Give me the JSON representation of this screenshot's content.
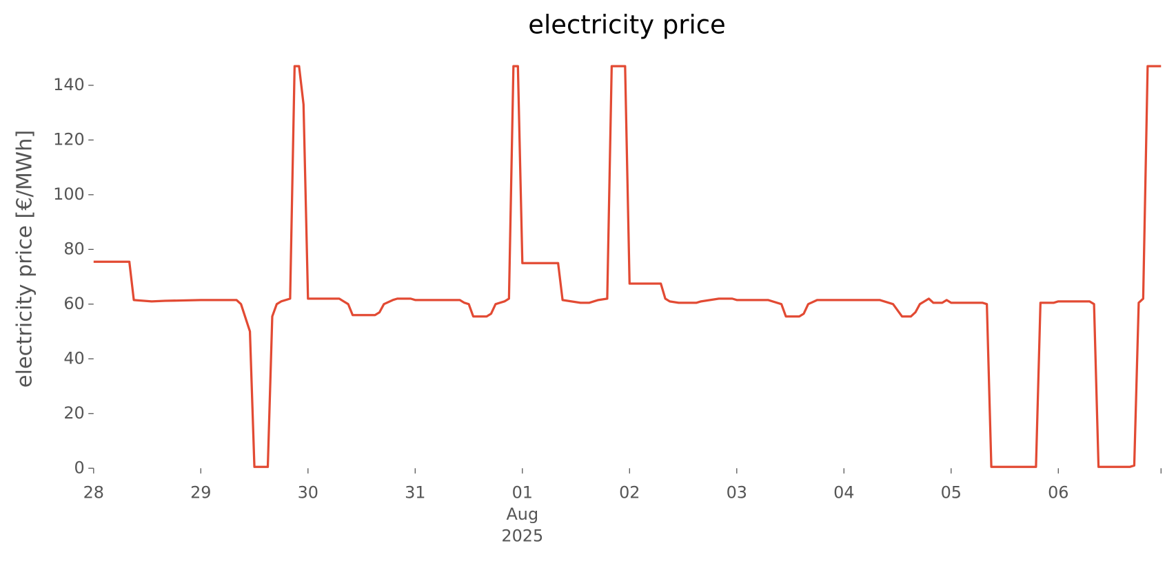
{
  "chart_data": {
    "type": "line",
    "title": "electricity price",
    "y_label": "electricity price [€/MWh]",
    "x": [
      "2025-07-28T00:00",
      "2025-07-28T08:00",
      "2025-07-28T09:00",
      "2025-07-28T13:00",
      "2025-07-28T16:00",
      "2025-07-29T00:00",
      "2025-07-29T08:00",
      "2025-07-29T09:00",
      "2025-07-29T11:00",
      "2025-07-29T12:00",
      "2025-07-29T15:00",
      "2025-07-29T16:00",
      "2025-07-29T17:00",
      "2025-07-29T18:00",
      "2025-07-29T20:00",
      "2025-07-29T21:00",
      "2025-07-29T22:00",
      "2025-07-29T23:00",
      "2025-07-30T00:00",
      "2025-07-30T07:00",
      "2025-07-30T08:00",
      "2025-07-30T09:00",
      "2025-07-30T10:00",
      "2025-07-30T15:00",
      "2025-07-30T16:00",
      "2025-07-30T17:00",
      "2025-07-30T19:00",
      "2025-07-30T20:00",
      "2025-07-30T23:00",
      "2025-07-31T00:00",
      "2025-07-31T10:00",
      "2025-07-31T11:00",
      "2025-07-31T12:00",
      "2025-07-31T13:00",
      "2025-07-31T16:00",
      "2025-07-31T17:00",
      "2025-07-31T18:00",
      "2025-07-31T20:00",
      "2025-07-31T21:00",
      "2025-07-31T22:00",
      "2025-07-31T23:00",
      "2025-08-01T00:00",
      "2025-08-01T08:00",
      "2025-08-01T09:00",
      "2025-08-01T11:00",
      "2025-08-01T13:00",
      "2025-08-01T15:00",
      "2025-08-01T17:00",
      "2025-08-01T19:00",
      "2025-08-01T20:00",
      "2025-08-01T23:00",
      "2025-08-02T00:00",
      "2025-08-02T07:00",
      "2025-08-02T08:00",
      "2025-08-02T09:00",
      "2025-08-02T11:00",
      "2025-08-02T15:00",
      "2025-08-02T16:00",
      "2025-08-02T18:00",
      "2025-08-02T20:00",
      "2025-08-02T23:00",
      "2025-08-03T00:00",
      "2025-08-03T07:00",
      "2025-08-03T09:00",
      "2025-08-03T10:00",
      "2025-08-03T11:00",
      "2025-08-03T14:00",
      "2025-08-03T15:00",
      "2025-08-03T16:00",
      "2025-08-03T18:00",
      "2025-08-04T00:00",
      "2025-08-04T08:00",
      "2025-08-04T09:00",
      "2025-08-04T11:00",
      "2025-08-04T13:00",
      "2025-08-04T15:00",
      "2025-08-04T16:00",
      "2025-08-04T17:00",
      "2025-08-04T18:00",
      "2025-08-04T19:00",
      "2025-08-04T20:00",
      "2025-08-04T22:00",
      "2025-08-04T23:00",
      "2025-08-05T00:00",
      "2025-08-05T07:00",
      "2025-08-05T08:00",
      "2025-08-05T09:00",
      "2025-08-05T19:00",
      "2025-08-05T20:00",
      "2025-08-05T23:00",
      "2025-08-06T00:00",
      "2025-08-06T07:00",
      "2025-08-06T08:00",
      "2025-08-06T09:00",
      "2025-08-06T16:00",
      "2025-08-06T17:00",
      "2025-08-06T18:00",
      "2025-08-06T19:00",
      "2025-08-06T20:00",
      "2025-08-06T23:00"
    ],
    "series": [
      {
        "name": "electricity price",
        "color": "#E24A33",
        "values": [
          75.5,
          75.5,
          61.5,
          61,
          61.2,
          61.5,
          61.5,
          60,
          50,
          0.5,
          0.5,
          55.5,
          60,
          61,
          62,
          147,
          147,
          133,
          62,
          62,
          61,
          60,
          56,
          56,
          57,
          60,
          61.5,
          62,
          62,
          61.5,
          61.5,
          60.5,
          60,
          55.5,
          55.5,
          56.5,
          60,
          61,
          62,
          147,
          147,
          75,
          75,
          61.5,
          61,
          60.5,
          60.5,
          61.5,
          62,
          147,
          147,
          67.5,
          67.5,
          62,
          61,
          60.5,
          60.5,
          61,
          61.5,
          62,
          62,
          61.5,
          61.5,
          60.5,
          60,
          55.5,
          55.5,
          56.5,
          60,
          61.5,
          61.5,
          61.5,
          61,
          60,
          55.5,
          55.5,
          57,
          60,
          61,
          62,
          60.5,
          60.5,
          61.5,
          60.5,
          60.5,
          60,
          0.5,
          0.5,
          60.5,
          60.5,
          61,
          61,
          60,
          0.5,
          0.5,
          1,
          60.5,
          62,
          147,
          147
        ]
      }
    ],
    "xlim": [
      "2025-07-28T00:00",
      "2025-08-06T23:00"
    ],
    "xticks": [
      {
        "value": "2025-07-28T00:00",
        "label": "28"
      },
      {
        "value": "2025-07-29T00:00",
        "label": "29"
      },
      {
        "value": "2025-07-30T00:00",
        "label": "30"
      },
      {
        "value": "2025-07-31T00:00",
        "label": "31"
      },
      {
        "value": "2025-08-01T00:00",
        "label": "01\nAug\n2025"
      },
      {
        "value": "2025-08-02T00:00",
        "label": "02"
      },
      {
        "value": "2025-08-03T00:00",
        "label": "03"
      },
      {
        "value": "2025-08-04T00:00",
        "label": "04"
      },
      {
        "value": "2025-08-05T00:00",
        "label": "05"
      },
      {
        "value": "2025-08-06T00:00",
        "label": "06"
      }
    ],
    "ylim": [
      0,
      147.5
    ],
    "yticks": [
      0,
      20,
      40,
      60,
      80,
      100,
      120,
      140
    ],
    "grid": false
  }
}
